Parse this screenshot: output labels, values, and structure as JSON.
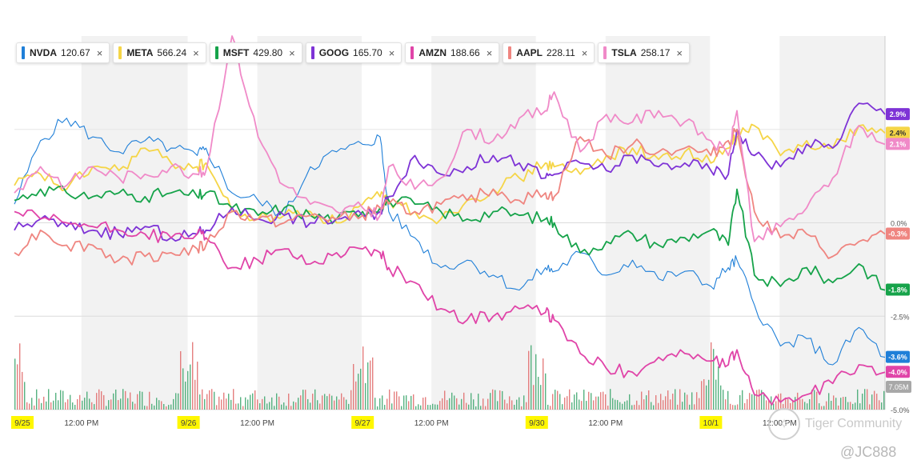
{
  "legend": [
    {
      "symbol": "NVDA",
      "price": "120.67",
      "color": "#1f7fd8"
    },
    {
      "symbol": "META",
      "price": "566.24",
      "color": "#f5d547"
    },
    {
      "symbol": "MSFT",
      "price": "429.80",
      "color": "#16a34a"
    },
    {
      "symbol": "GOOG",
      "price": "165.70",
      "color": "#7e33d6"
    },
    {
      "symbol": "AMZN",
      "price": "188.66",
      "color": "#e044a8"
    },
    {
      "symbol": "AAPL",
      "price": "228.11",
      "color": "#ef8580"
    },
    {
      "symbol": "TSLA",
      "price": "258.17",
      "color": "#f08ac8"
    }
  ],
  "close_icon": "×",
  "watermark": {
    "text": "Tiger Community",
    "icon": "tiger-logo-icon"
  },
  "handle": "@JC888",
  "chart_data": {
    "type": "line",
    "x_ticks": [
      "9/25",
      "12:00 PM",
      "9/26",
      "12:00 PM",
      "9/27",
      "12:00 PM",
      "9/30",
      "12:00 PM",
      "10/1",
      "12:00 PM"
    ],
    "x_highlighted": [
      "9/25",
      "9/26",
      "9/27",
      "9/30",
      "10/1"
    ],
    "y_ticks": [
      "0.0%",
      "-2.5%",
      "-5.0%"
    ],
    "ylim": [
      -5.0,
      5.0
    ],
    "series": [
      {
        "name": "NVDA",
        "color": "#1f7fd8",
        "end_label": "-3.6%",
        "x": [
          0,
          0.03,
          0.06,
          0.09,
          0.12,
          0.15,
          0.18,
          0.21,
          0.22,
          0.25,
          0.28,
          0.31,
          0.34,
          0.37,
          0.4,
          0.42,
          0.43,
          0.46,
          0.49,
          0.52,
          0.55,
          0.58,
          0.61,
          0.62,
          0.65,
          0.68,
          0.71,
          0.74,
          0.77,
          0.8,
          0.82,
          0.83,
          0.85,
          0.88,
          0.91,
          0.94,
          0.97,
          1.0
        ],
        "y": [
          0.5,
          2.2,
          2.8,
          2.3,
          1.9,
          2.2,
          2.0,
          1.8,
          2.0,
          0.8,
          0.6,
          0.2,
          1.5,
          1.9,
          2.1,
          2.3,
          0.3,
          -0.4,
          -1.2,
          -1.0,
          -1.4,
          -1.8,
          -1.2,
          -1.3,
          -0.8,
          -1.4,
          -1.0,
          -1.5,
          -1.3,
          -1.7,
          -1.2,
          -1.0,
          -2.2,
          -3.3,
          -3.1,
          -3.8,
          -2.8,
          -3.6
        ]
      },
      {
        "name": "META",
        "color": "#f5d547",
        "end_label": "2.4%",
        "x": [
          0,
          0.03,
          0.06,
          0.09,
          0.12,
          0.15,
          0.18,
          0.21,
          0.22,
          0.25,
          0.28,
          0.31,
          0.34,
          0.37,
          0.4,
          0.42,
          0.43,
          0.46,
          0.49,
          0.52,
          0.55,
          0.58,
          0.61,
          0.62,
          0.65,
          0.68,
          0.71,
          0.74,
          0.77,
          0.8,
          0.82,
          0.83,
          0.85,
          0.88,
          0.91,
          0.94,
          0.97,
          1.0
        ],
        "y": [
          1.0,
          1.3,
          0.9,
          1.5,
          1.4,
          2.0,
          1.6,
          1.5,
          1.6,
          0.3,
          0.1,
          0.2,
          0.3,
          0.0,
          0.5,
          0.7,
          0.6,
          0.3,
          0.1,
          0.6,
          0.9,
          1.2,
          1.6,
          1.5,
          1.3,
          1.8,
          2.0,
          1.7,
          1.9,
          1.6,
          2.0,
          2.3,
          2.6,
          1.8,
          2.2,
          2.0,
          2.6,
          2.4
        ]
      },
      {
        "name": "MSFT",
        "color": "#16a34a",
        "end_label": "-1.8%",
        "x": [
          0,
          0.03,
          0.06,
          0.09,
          0.12,
          0.15,
          0.18,
          0.21,
          0.22,
          0.25,
          0.28,
          0.31,
          0.34,
          0.37,
          0.4,
          0.42,
          0.43,
          0.46,
          0.49,
          0.52,
          0.55,
          0.58,
          0.61,
          0.62,
          0.65,
          0.68,
          0.71,
          0.74,
          0.77,
          0.8,
          0.82,
          0.83,
          0.85,
          0.88,
          0.91,
          0.94,
          0.97,
          1.0
        ],
        "y": [
          0.6,
          0.9,
          0.8,
          0.7,
          0.8,
          0.7,
          0.8,
          0.7,
          0.8,
          0.4,
          0.2,
          0.4,
          0.2,
          0.1,
          0.3,
          0.4,
          0.6,
          0.5,
          0.3,
          0.1,
          0.3,
          0.2,
          0.1,
          0.0,
          -0.8,
          -0.5,
          -0.3,
          -0.6,
          -0.4,
          -0.2,
          -0.6,
          0.9,
          -1.4,
          -1.7,
          -1.2,
          -1.6,
          -1.1,
          -1.8
        ]
      },
      {
        "name": "GOOG",
        "color": "#7e33d6",
        "end_label": "2.9%",
        "x": [
          0,
          0.03,
          0.06,
          0.09,
          0.12,
          0.15,
          0.18,
          0.21,
          0.22,
          0.25,
          0.28,
          0.31,
          0.34,
          0.37,
          0.4,
          0.42,
          0.43,
          0.46,
          0.49,
          0.52,
          0.55,
          0.58,
          0.61,
          0.62,
          0.65,
          0.68,
          0.71,
          0.74,
          0.77,
          0.8,
          0.82,
          0.83,
          0.85,
          0.88,
          0.91,
          0.94,
          0.97,
          1.0
        ],
        "y": [
          -0.2,
          0.1,
          -0.1,
          -0.2,
          -0.3,
          -0.1,
          -0.4,
          -0.3,
          -0.2,
          0.4,
          0.1,
          0.2,
          0.0,
          0.1,
          0.2,
          0.3,
          0.7,
          1.8,
          1.3,
          1.5,
          1.8,
          1.6,
          1.2,
          1.3,
          1.6,
          1.4,
          1.8,
          1.5,
          1.6,
          1.4,
          1.3,
          2.5,
          1.8,
          1.5,
          2.1,
          2.0,
          3.2,
          2.9
        ]
      },
      {
        "name": "AMZN",
        "color": "#e044a8",
        "end_label": "-4.0%",
        "x": [
          0,
          0.03,
          0.06,
          0.09,
          0.12,
          0.15,
          0.18,
          0.21,
          0.22,
          0.25,
          0.28,
          0.31,
          0.34,
          0.37,
          0.4,
          0.42,
          0.43,
          0.46,
          0.49,
          0.52,
          0.55,
          0.58,
          0.61,
          0.62,
          0.65,
          0.68,
          0.71,
          0.74,
          0.77,
          0.8,
          0.82,
          0.83,
          0.85,
          0.88,
          0.91,
          0.94,
          0.97,
          1.0
        ],
        "y": [
          0.3,
          0.1,
          0.0,
          -0.1,
          -0.2,
          -0.3,
          -0.4,
          -0.3,
          -0.4,
          -1.2,
          -1.0,
          -0.7,
          -1.1,
          -0.8,
          -0.7,
          -0.8,
          -1.2,
          -1.6,
          -2.3,
          -2.6,
          -2.5,
          -2.3,
          -2.4,
          -2.6,
          -3.5,
          -3.9,
          -4.0,
          -3.6,
          -3.5,
          -3.7,
          -3.8,
          -3.4,
          -4.6,
          -4.8,
          -4.6,
          -4.3,
          -3.8,
          -4.0
        ]
      },
      {
        "name": "AAPL",
        "color": "#ef8580",
        "end_label": "-0.3%",
        "x": [
          0,
          0.03,
          0.06,
          0.09,
          0.12,
          0.15,
          0.18,
          0.21,
          0.22,
          0.25,
          0.28,
          0.31,
          0.34,
          0.37,
          0.4,
          0.42,
          0.43,
          0.46,
          0.49,
          0.52,
          0.55,
          0.58,
          0.61,
          0.62,
          0.65,
          0.68,
          0.71,
          0.74,
          0.77,
          0.8,
          0.82,
          0.83,
          0.85,
          0.88,
          0.91,
          0.94,
          0.97,
          1.0
        ],
        "y": [
          -0.8,
          -0.2,
          -0.6,
          -0.6,
          -1.0,
          -0.9,
          -0.8,
          -0.7,
          -0.6,
          0.3,
          0.1,
          0.0,
          0.2,
          0.1,
          0.2,
          0.4,
          0.5,
          0.3,
          0.5,
          0.6,
          0.9,
          0.6,
          0.8,
          0.7,
          2.3,
          1.8,
          2.1,
          1.9,
          2.0,
          1.8,
          2.2,
          2.5,
          0.3,
          -0.4,
          -0.3,
          -0.9,
          -0.5,
          -0.3
        ]
      },
      {
        "name": "TSLA",
        "color": "#f08ac8",
        "end_label": "2.1%",
        "x": [
          0,
          0.03,
          0.06,
          0.09,
          0.12,
          0.15,
          0.18,
          0.21,
          0.22,
          0.25,
          0.28,
          0.31,
          0.34,
          0.37,
          0.4,
          0.42,
          0.43,
          0.46,
          0.49,
          0.52,
          0.55,
          0.58,
          0.61,
          0.62,
          0.65,
          0.68,
          0.71,
          0.74,
          0.77,
          0.8,
          0.82,
          0.83,
          0.85,
          0.88,
          0.91,
          0.94,
          0.97,
          1.0
        ],
        "y": [
          0.8,
          1.5,
          1.0,
          1.5,
          1.2,
          1.3,
          1.5,
          1.3,
          1.4,
          5.0,
          2.3,
          1.0,
          0.5,
          0.3,
          0.4,
          0.2,
          1.5,
          0.9,
          1.2,
          2.5,
          2.2,
          2.8,
          3.0,
          3.5,
          1.9,
          2.9,
          2.7,
          3.0,
          2.7,
          2.2,
          1.8,
          3.0,
          -0.5,
          -0.1,
          0.4,
          1.2,
          2.6,
          2.1
        ]
      }
    ],
    "volume_label": "7.05M"
  }
}
